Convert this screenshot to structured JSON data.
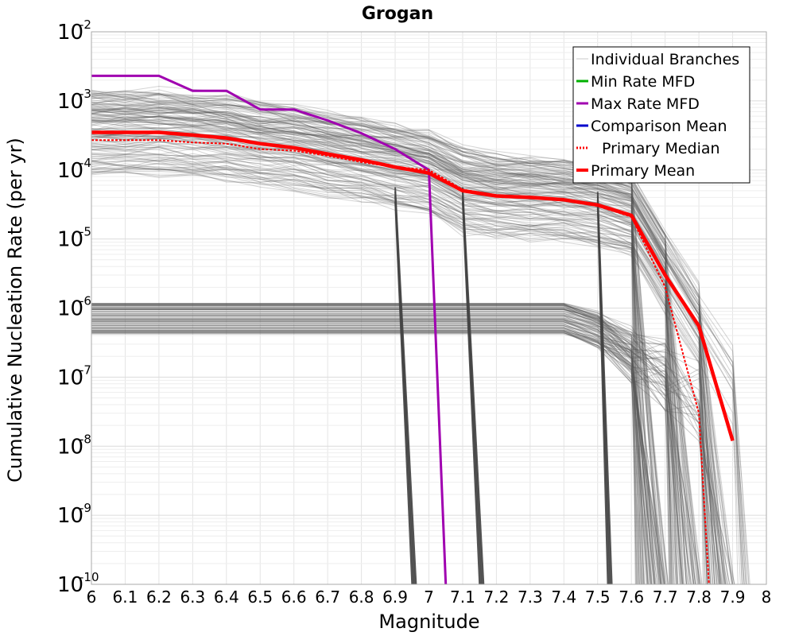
{
  "chart_data": {
    "type": "line",
    "title": "Grogan",
    "xlabel": "Magnitude",
    "ylabel": "Cumulative Nucleation Rate (per yr)",
    "xlim": [
      6,
      8
    ],
    "ylim_log10": [
      -10,
      -2
    ],
    "y_scale": "log",
    "grid": true,
    "legend_position": "top-right",
    "x_ticks": [
      "6",
      "6.1",
      "6.2",
      "6.3",
      "6.4",
      "6.5",
      "6.6",
      "6.7",
      "6.8",
      "6.9",
      "7",
      "7.1",
      "7.2",
      "7.3",
      "7.4",
      "7.5",
      "7.6",
      "7.7",
      "7.8",
      "7.9",
      "8"
    ],
    "y_ticks": [
      {
        "base": "10",
        "exp": "-2"
      },
      {
        "base": "10",
        "exp": "-3"
      },
      {
        "base": "10",
        "exp": "-4"
      },
      {
        "base": "10",
        "exp": "-5"
      },
      {
        "base": "10",
        "exp": "-6"
      },
      {
        "base": "10",
        "exp": "-7"
      },
      {
        "base": "10",
        "exp": "-8"
      },
      {
        "base": "10",
        "exp": "-9"
      },
      {
        "base": "10",
        "exp": "-10"
      }
    ],
    "legend": [
      {
        "label": "Individual Branches",
        "color": "#c8c8c8",
        "style": "thin"
      },
      {
        "label": "Min Rate MFD",
        "color": "#00b000",
        "style": "solid"
      },
      {
        "label": "Max Rate MFD",
        "color": "#a000b0",
        "style": "solid"
      },
      {
        "label": "Comparison Mean",
        "color": "#0000cc",
        "style": "solid"
      },
      {
        "label": "Primary Median",
        "color": "#ff0000",
        "style": "dotted"
      },
      {
        "label": "Primary Mean",
        "color": "#ff0000",
        "style": "thick"
      }
    ],
    "series": [
      {
        "name": "Max Rate MFD",
        "color": "#a000b0",
        "x": [
          6.0,
          6.1,
          6.2,
          6.3,
          6.4,
          6.5,
          6.6,
          6.7,
          6.8,
          6.9,
          7.0,
          7.05
        ],
        "y": [
          0.0023,
          0.0023,
          0.0023,
          0.0014,
          0.0014,
          0.00075,
          0.00075,
          0.00052,
          0.00034,
          0.0002,
          0.0001,
          1e-10
        ]
      },
      {
        "name": "Primary Median",
        "color": "#ff0000",
        "x": [
          6.0,
          6.1,
          6.2,
          6.3,
          6.4,
          6.5,
          6.6,
          6.7,
          6.8,
          6.9,
          7.0,
          7.1,
          7.2,
          7.3,
          7.4,
          7.5,
          7.6,
          7.7,
          7.8,
          7.83
        ],
        "y": [
          0.00027,
          0.00027,
          0.00027,
          0.00025,
          0.00024,
          0.0002,
          0.00019,
          0.00016,
          0.00013,
          0.00011,
          0.0001,
          5.2e-05,
          4.3e-05,
          4e-05,
          3.7e-05,
          3e-05,
          2.1e-05,
          2e-06,
          3e-08,
          1e-10
        ]
      },
      {
        "name": "Primary Mean",
        "color": "#ff0000",
        "x": [
          6.0,
          6.1,
          6.2,
          6.3,
          6.4,
          6.5,
          6.6,
          6.7,
          6.8,
          6.9,
          7.0,
          7.1,
          7.2,
          7.3,
          7.4,
          7.5,
          7.6,
          7.7,
          7.8,
          7.9
        ],
        "y": [
          0.00035,
          0.00035,
          0.00035,
          0.00032,
          0.00029,
          0.00024,
          0.00021,
          0.00017,
          0.00014,
          0.00011,
          9e-05,
          5e-05,
          4.2e-05,
          4e-05,
          3.7e-05,
          3.1e-05,
          2.2e-05,
          3e-06,
          5.5e-07,
          1.2e-08
        ]
      },
      {
        "name": "Min Rate MFD",
        "color": "#00b000",
        "x": [],
        "y": []
      },
      {
        "name": "Comparison Mean",
        "color": "#0000cc",
        "x": [],
        "y": []
      }
    ]
  }
}
